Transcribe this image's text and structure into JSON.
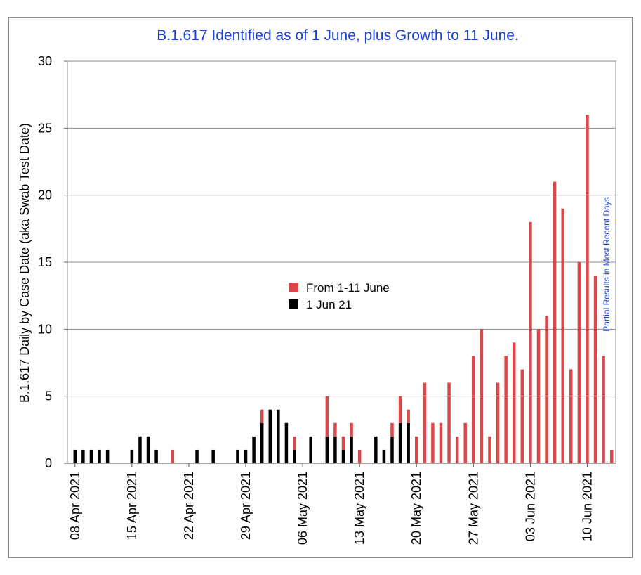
{
  "chart_data": {
    "type": "bar",
    "stacked": true,
    "title": "B.1.617 Identified as of 1 June, plus Growth to 11 June.",
    "ylabel": "B.1.617 Daily by Case Date (aka Swab Test Date)",
    "xlabel": "",
    "ylim": [
      0,
      30
    ],
    "yticks": [
      0,
      5,
      10,
      15,
      20,
      25,
      30
    ],
    "grid": true,
    "start_date": "08 Apr 2021",
    "x_tick_labels": [
      "08 Apr 2021",
      "15 Apr 2021",
      "22 Apr 2021",
      "29 Apr 2021",
      "06 May 2021",
      "13 May 2021",
      "20 May 2021",
      "27 May 2021",
      "03 Jun 2021",
      "10 Jun 2021"
    ],
    "x_tick_day_index": [
      0,
      7,
      14,
      21,
      28,
      35,
      42,
      49,
      56,
      63
    ],
    "legend": {
      "placement": "center",
      "entries": [
        "From 1-11 June",
        "1 Jun 21"
      ]
    },
    "annotation": "Partial Results in Most Recent Days",
    "series": [
      {
        "name": "1 Jun 21",
        "color": "#000000",
        "values": [
          1,
          1,
          1,
          1,
          1,
          0,
          0,
          1,
          2,
          2,
          1,
          0,
          0,
          0,
          0,
          1,
          0,
          1,
          0,
          0,
          1,
          1,
          2,
          3,
          4,
          4,
          3,
          1,
          0,
          2,
          0,
          2,
          2,
          1,
          2,
          0,
          0,
          2,
          1,
          2,
          3,
          3,
          0,
          0,
          0,
          0,
          0,
          0,
          0,
          0,
          0,
          0,
          0,
          0,
          0,
          0,
          0,
          0,
          0,
          0,
          0,
          0,
          0,
          0,
          0
        ]
      },
      {
        "name": "From 1-11 June",
        "color": "#d9484a",
        "values": [
          0,
          0,
          0,
          0,
          0,
          0,
          0,
          0,
          0,
          0,
          0,
          0,
          1,
          0,
          0,
          0,
          0,
          0,
          0,
          0,
          0,
          0,
          0,
          1,
          0,
          0,
          0,
          1,
          0,
          0,
          0,
          3,
          1,
          1,
          1,
          1,
          0,
          0,
          0,
          1,
          2,
          1,
          2,
          6,
          3,
          3,
          6,
          2,
          3,
          8,
          10,
          2,
          6,
          8,
          9,
          7,
          18,
          10,
          11,
          21,
          19,
          7,
          15,
          26,
          14,
          8,
          1
        ]
      }
    ]
  }
}
